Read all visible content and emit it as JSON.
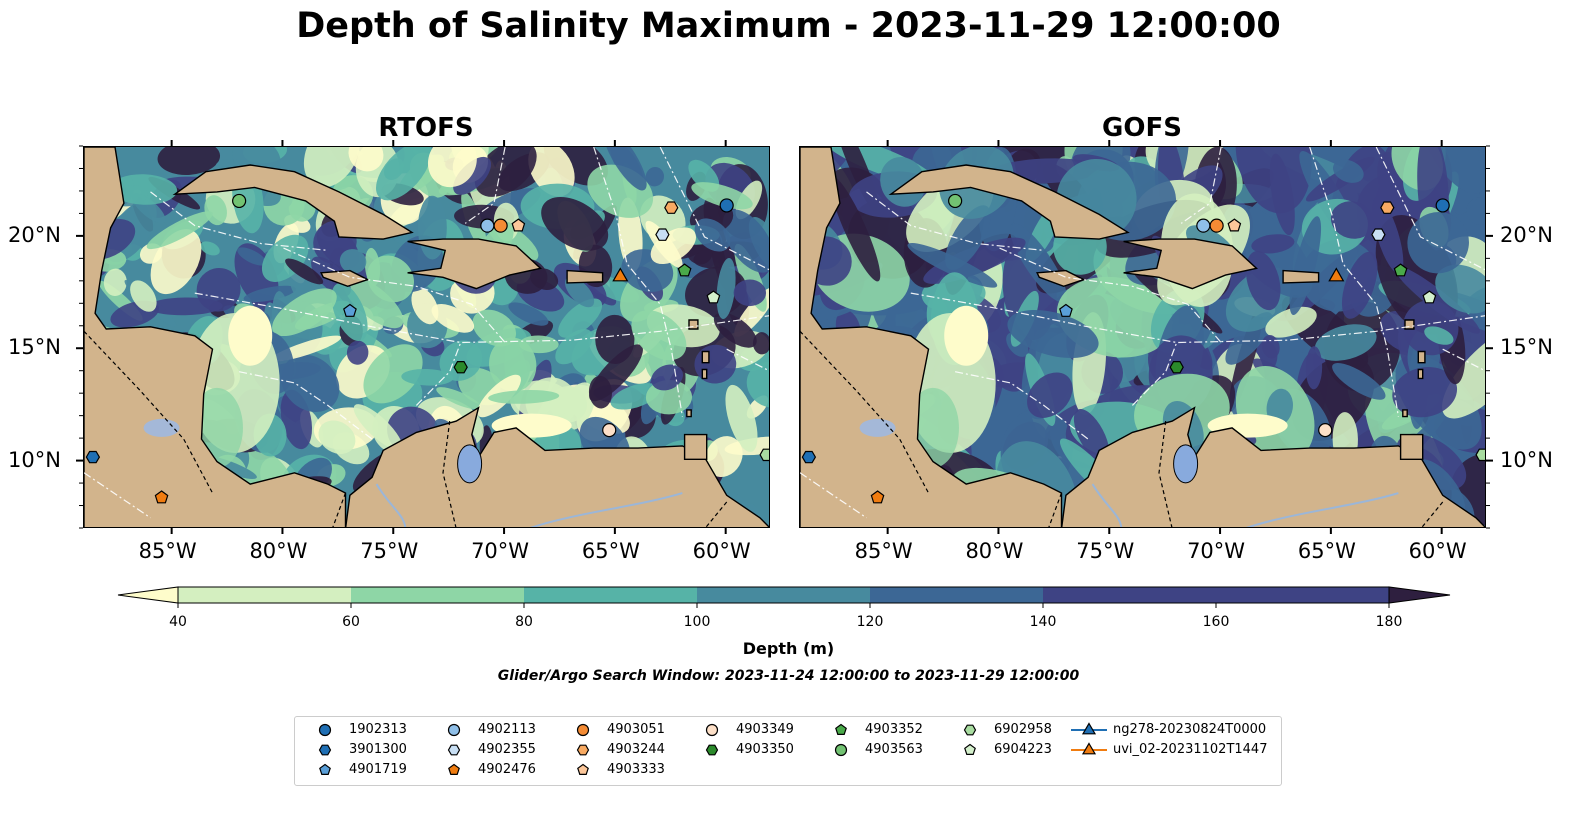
{
  "title": "Depth of Salinity Maximum - 2023-11-29 12:00:00",
  "panels": [
    {
      "title": "RTOFS"
    },
    {
      "title": "GOFS"
    }
  ],
  "map": {
    "lon_range": [
      -89,
      -58
    ],
    "lat_range": [
      7,
      24
    ],
    "x_ticks": [
      "85°W",
      "80°W",
      "75°W",
      "70°W",
      "65°W",
      "60°W"
    ],
    "x_tick_values": [
      -85,
      -80,
      -75,
      -70,
      -65,
      -60
    ],
    "y_ticks": [
      "20°N",
      "15°N",
      "10°N"
    ],
    "y_tick_values": [
      20,
      15,
      10
    ],
    "land_color": "#d2b48c",
    "lake_color": "#88aadd"
  },
  "colorbar": {
    "label": "Depth (m)",
    "ticks": [
      "40",
      "60",
      "80",
      "100",
      "120",
      "140",
      "160",
      "180"
    ],
    "colors": [
      "#fefccb",
      "#d4efc0",
      "#8ed6a6",
      "#56b3a7",
      "#478a9e",
      "#3c6795",
      "#3e4384",
      "#2e1f3f"
    ],
    "extend": "both"
  },
  "search_window": "Glider/Argo Search Window: 2023-11-24 12:00:00 to 2023-11-29 12:00:00",
  "legend": [
    {
      "label": "1902313",
      "marker": "circle",
      "color": "#1f6fb4"
    },
    {
      "label": "3901300",
      "marker": "hexagon",
      "color": "#1f6fb4"
    },
    {
      "label": "4901719",
      "marker": "pentagon",
      "color": "#5a9fd8"
    },
    {
      "label": "4902113",
      "marker": "circle",
      "color": "#8fbfe8"
    },
    {
      "label": "4902355",
      "marker": "hexagon",
      "color": "#c8dff4"
    },
    {
      "label": "4902476",
      "marker": "pentagon",
      "color": "#f07c10"
    },
    {
      "label": "4903051",
      "marker": "circle",
      "color": "#f48b34"
    },
    {
      "label": "4903244",
      "marker": "hexagon",
      "color": "#f8aa62"
    },
    {
      "label": "4903333",
      "marker": "pentagon",
      "color": "#fcc79a"
    },
    {
      "label": "4903349",
      "marker": "circle",
      "color": "#fde0c8"
    },
    {
      "label": "4903350",
      "marker": "hexagon",
      "color": "#2b8a2b"
    },
    {
      "label": "4903352",
      "marker": "pentagon",
      "color": "#4aaa4a"
    },
    {
      "label": "4903563",
      "marker": "circle",
      "color": "#72c272"
    },
    {
      "label": "6902958",
      "marker": "hexagon",
      "color": "#a8dca0"
    },
    {
      "label": "6904223",
      "marker": "pentagon",
      "color": "#d4f0cc"
    },
    {
      "label": "ng278-20230824T0000",
      "marker": "triangle",
      "color": "#1f6fb4",
      "line": true
    },
    {
      "label": "uvi_02-20231102T1447",
      "marker": "triangle",
      "color": "#f07c10",
      "line": true
    }
  ],
  "markers": [
    {
      "id": "1902313",
      "lon": -60.0,
      "lat": 21.4
    },
    {
      "id": "3901300",
      "lon": -88.6,
      "lat": 10.2
    },
    {
      "id": "4901719",
      "lon": -77.0,
      "lat": 16.7
    },
    {
      "id": "4902113",
      "lon": -70.8,
      "lat": 20.5
    },
    {
      "id": "4902355",
      "lon": -62.9,
      "lat": 20.1
    },
    {
      "id": "4902476",
      "lon": -85.5,
      "lat": 8.4
    },
    {
      "id": "4903051",
      "lon": -70.2,
      "lat": 20.5
    },
    {
      "id": "4903244",
      "lon": -62.5,
      "lat": 21.3
    },
    {
      "id": "4903333",
      "lon": -69.4,
      "lat": 20.5
    },
    {
      "id": "4903349",
      "lon": -65.3,
      "lat": 11.4
    },
    {
      "id": "4903350",
      "lon": -72.0,
      "lat": 14.2
    },
    {
      "id": "4903352",
      "lon": -61.9,
      "lat": 18.5
    },
    {
      "id": "4903563",
      "lon": -82.0,
      "lat": 21.6
    },
    {
      "id": "6902958",
      "lon": -58.2,
      "lat": 10.3
    },
    {
      "id": "6904223",
      "lon": -60.6,
      "lat": 17.3
    },
    {
      "id": "uvi_02-20231102T1447",
      "lon": -64.8,
      "lat": 18.3
    }
  ]
}
